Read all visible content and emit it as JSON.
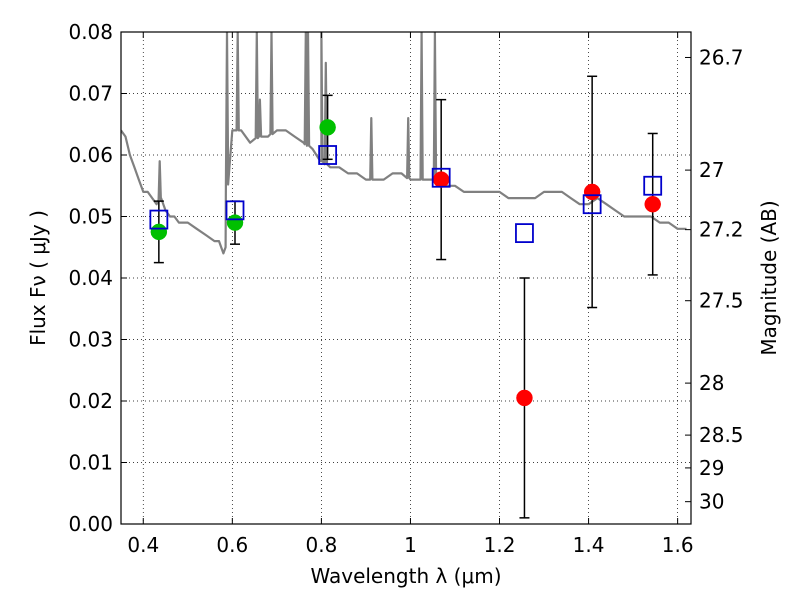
{
  "chart_data": {
    "type": "scatter",
    "xlabel": "Wavelength  λ (μm)",
    "ylabel_left": "Flux  Fν  ( μJy )",
    "ylabel_right": "Magnitude (AB)",
    "xlim": [
      0.35,
      1.63
    ],
    "ylim": [
      0.0,
      0.08
    ],
    "grid": true,
    "x_ticks": [
      {
        "v": 0.4,
        "label": "0.4"
      },
      {
        "v": 0.6,
        "label": "0.6"
      },
      {
        "v": 0.8,
        "label": "0.8"
      },
      {
        "v": 1.0,
        "label": "1"
      },
      {
        "v": 1.2,
        "label": "1.2"
      },
      {
        "v": 1.4,
        "label": "1.4"
      },
      {
        "v": 1.6,
        "label": "1.6"
      }
    ],
    "y_ticks": [
      {
        "v": 0.0,
        "label": "0.00"
      },
      {
        "v": 0.01,
        "label": "0.01"
      },
      {
        "v": 0.02,
        "label": "0.02"
      },
      {
        "v": 0.03,
        "label": "0.03"
      },
      {
        "v": 0.04,
        "label": "0.04"
      },
      {
        "v": 0.05,
        "label": "0.05"
      },
      {
        "v": 0.06,
        "label": "0.06"
      },
      {
        "v": 0.07,
        "label": "0.07"
      },
      {
        "v": 0.08,
        "label": "0.08"
      }
    ],
    "mag_ticks": [
      {
        "v": 26.7,
        "label": "26.7"
      },
      {
        "v": 27.0,
        "label": "27"
      },
      {
        "v": 27.2,
        "label": "27.2"
      },
      {
        "v": 27.5,
        "label": "27.5"
      },
      {
        "v": 28.0,
        "label": "28"
      },
      {
        "v": 28.5,
        "label": "28.5"
      },
      {
        "v": 29.0,
        "label": "29"
      },
      {
        "v": 30.0,
        "label": "30"
      }
    ],
    "colors": {
      "model": "#808080",
      "green": "#00c000",
      "red": "#ff0000",
      "square": "#0000cc",
      "errorbar": "#000000"
    },
    "model_spectrum": {
      "x": [
        0.35,
        0.36,
        0.37,
        0.38,
        0.39,
        0.4,
        0.41,
        0.42,
        0.43,
        0.44,
        0.45,
        0.46,
        0.47,
        0.48,
        0.5,
        0.52,
        0.54,
        0.56,
        0.57,
        0.58,
        0.585,
        0.59,
        0.6,
        0.62,
        0.64,
        0.66,
        0.68,
        0.7,
        0.72,
        0.74,
        0.76,
        0.78,
        0.8,
        0.82,
        0.84,
        0.86,
        0.88,
        0.9,
        0.92,
        0.94,
        0.96,
        0.98,
        1.0,
        1.02,
        1.04,
        1.06,
        1.08,
        1.1,
        1.12,
        1.14,
        1.16,
        1.18,
        1.2,
        1.22,
        1.24,
        1.26,
        1.28,
        1.3,
        1.32,
        1.34,
        1.36,
        1.38,
        1.4,
        1.42,
        1.44,
        1.46,
        1.48,
        1.5,
        1.52,
        1.54,
        1.56,
        1.58,
        1.6,
        1.62
      ],
      "y": [
        0.064,
        0.063,
        0.06,
        0.058,
        0.056,
        0.054,
        0.054,
        0.053,
        0.052,
        0.053,
        0.051,
        0.05,
        0.05,
        0.049,
        0.049,
        0.048,
        0.047,
        0.046,
        0.046,
        0.044,
        0.045,
        0.062,
        0.064,
        0.064,
        0.062,
        0.063,
        0.063,
        0.064,
        0.064,
        0.063,
        0.062,
        0.061,
        0.059,
        0.058,
        0.058,
        0.057,
        0.057,
        0.056,
        0.056,
        0.056,
        0.057,
        0.057,
        0.056,
        0.056,
        0.056,
        0.056,
        0.055,
        0.055,
        0.054,
        0.054,
        0.054,
        0.054,
        0.054,
        0.053,
        0.053,
        0.053,
        0.053,
        0.054,
        0.054,
        0.054,
        0.053,
        0.052,
        0.052,
        0.053,
        0.052,
        0.051,
        0.05,
        0.05,
        0.05,
        0.05,
        0.049,
        0.049,
        0.048,
        0.048
      ]
    },
    "emission_lines": [
      {
        "x": 0.437,
        "y": 0.059
      },
      {
        "x": 0.588,
        "y": 0.08
      },
      {
        "x": 0.612,
        "y": 0.08
      },
      {
        "x": 0.655,
        "y": 0.08
      },
      {
        "x": 0.662,
        "y": 0.069
      },
      {
        "x": 0.688,
        "y": 0.08
      },
      {
        "x": 0.765,
        "y": 0.08
      },
      {
        "x": 0.77,
        "y": 0.08
      },
      {
        "x": 0.8,
        "y": 0.08
      },
      {
        "x": 0.81,
        "y": 0.075
      },
      {
        "x": 0.912,
        "y": 0.066
      },
      {
        "x": 0.995,
        "y": 0.066
      },
      {
        "x": 1.025,
        "y": 0.08
      },
      {
        "x": 1.055,
        "y": 0.08
      }
    ],
    "series": [
      {
        "marker": "circle",
        "color_key": "green",
        "points": [
          {
            "x": 0.435,
            "y": 0.0475,
            "err": 0.005
          },
          {
            "x": 0.606,
            "y": 0.049,
            "err": 0.0035
          },
          {
            "x": 0.814,
            "y": 0.0645,
            "err": 0.0052
          }
        ]
      },
      {
        "marker": "circle",
        "color_key": "red",
        "points": [
          {
            "x": 1.069,
            "y": 0.056,
            "err": 0.013
          },
          {
            "x": 1.256,
            "y": 0.0205,
            "err": 0.0195
          },
          {
            "x": 1.408,
            "y": 0.054,
            "err": 0.0188
          },
          {
            "x": 1.544,
            "y": 0.052,
            "err": 0.0115
          }
        ]
      },
      {
        "marker": "square",
        "color_key": "square",
        "points": [
          {
            "x": 0.435,
            "y": 0.0495
          },
          {
            "x": 0.606,
            "y": 0.051
          },
          {
            "x": 0.814,
            "y": 0.06
          },
          {
            "x": 1.069,
            "y": 0.0563
          },
          {
            "x": 1.256,
            "y": 0.0473
          },
          {
            "x": 1.408,
            "y": 0.052
          },
          {
            "x": 1.544,
            "y": 0.055
          }
        ]
      }
    ]
  }
}
